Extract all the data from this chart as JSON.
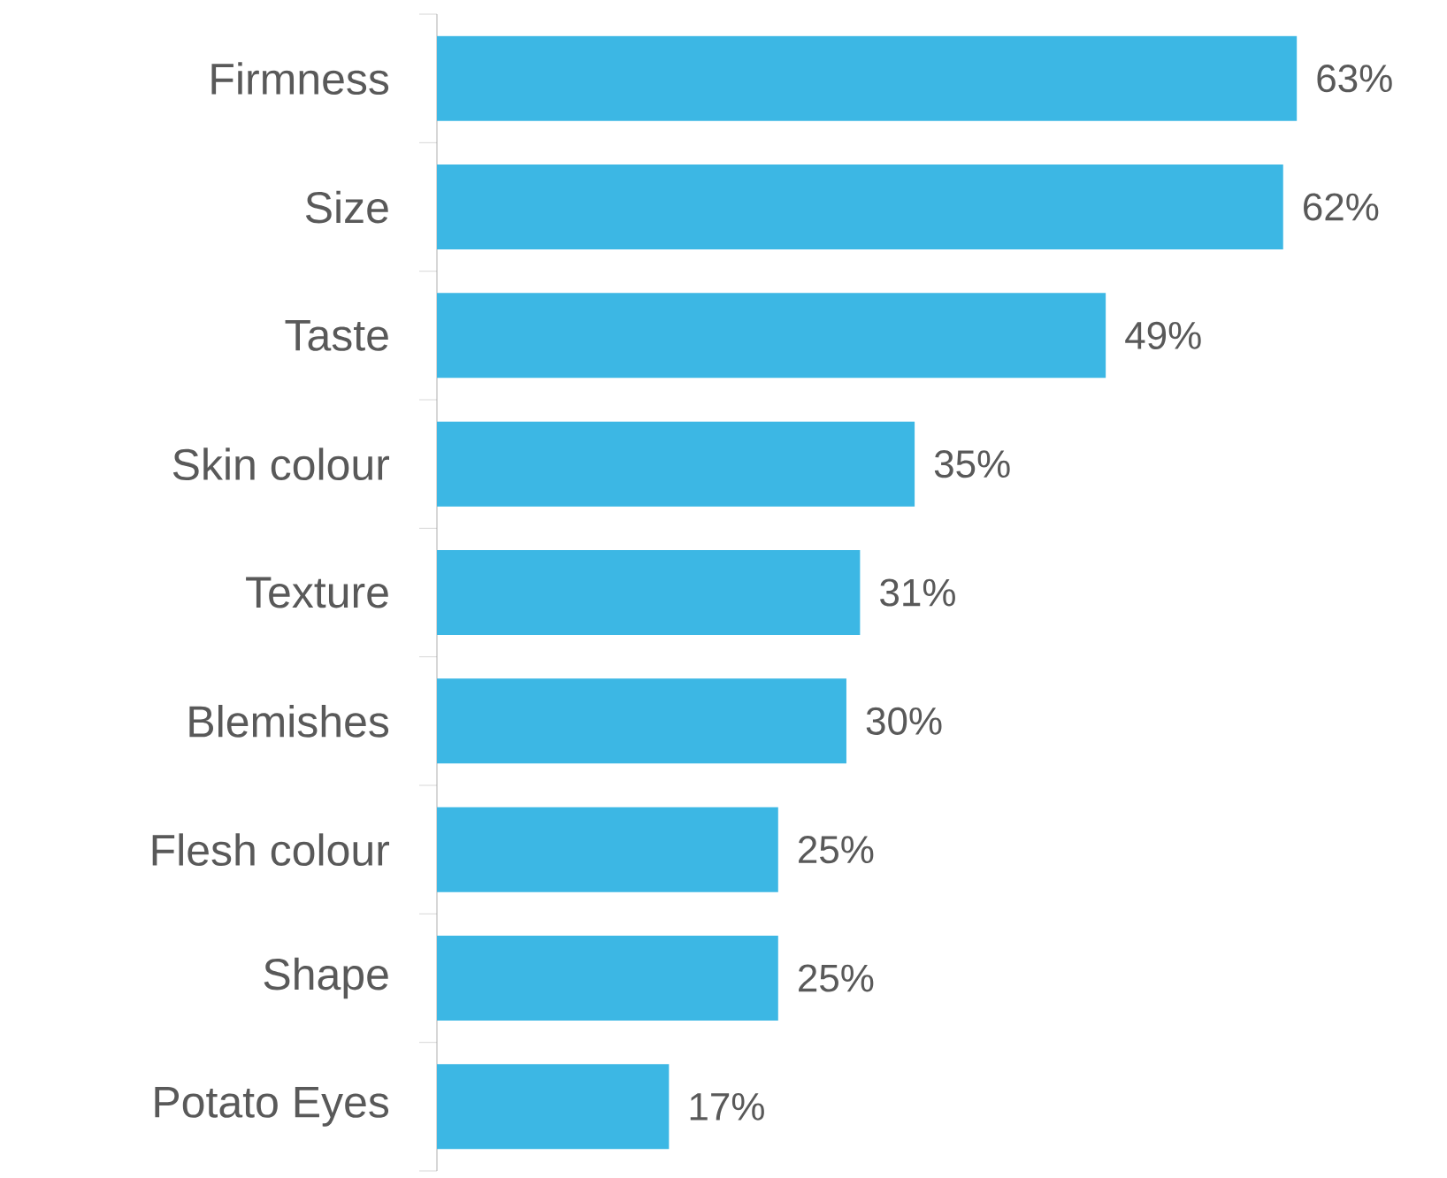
{
  "chart_data": {
    "type": "bar",
    "orientation": "horizontal",
    "categories": [
      "Firmness",
      "Size",
      "Taste",
      "Skin colour",
      "Texture",
      "Blemishes",
      "Flesh colour",
      "Shape",
      "Potato Eyes"
    ],
    "values": [
      63,
      62,
      49,
      35,
      31,
      30,
      25,
      25,
      17
    ],
    "value_labels": [
      "63%",
      "62%",
      "49%",
      "35%",
      "31%",
      "30%",
      "25%",
      "25%",
      "17%"
    ],
    "color": "#3cb7e4"
  }
}
